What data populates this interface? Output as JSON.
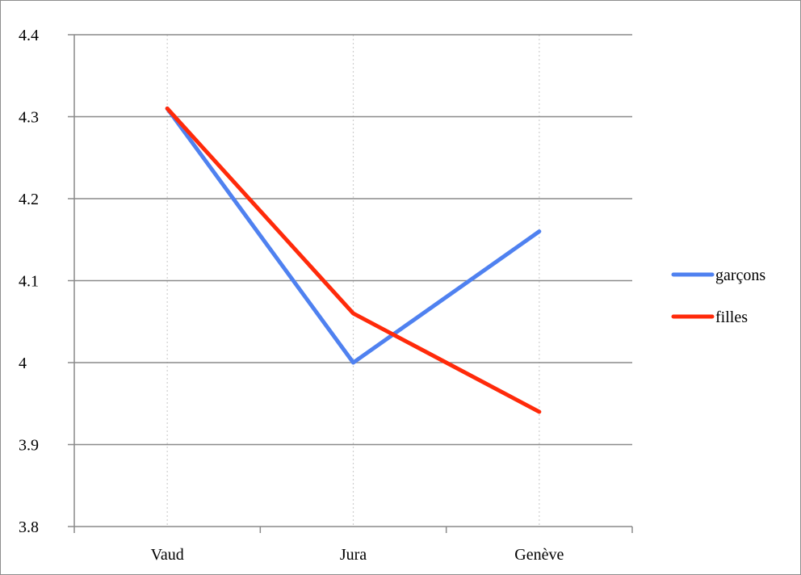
{
  "chart_data": {
    "type": "line",
    "categories": [
      "Vaud",
      "Jura",
      "Genève"
    ],
    "series": [
      {
        "name": "garçons",
        "values": [
          4.31,
          4.0,
          4.16
        ],
        "color": "#4F81F0"
      },
      {
        "name": "filles",
        "values": [
          4.31,
          4.06,
          3.94
        ],
        "color": "#FF2A0A"
      }
    ],
    "y_ticks": [
      "3.8",
      "3.9",
      "4",
      "4.1",
      "4.2",
      "4.3",
      "4.4"
    ],
    "ylim": [
      3.8,
      4.4
    ],
    "title": "",
    "xlabel": "",
    "ylabel": "",
    "grid": "horizontal major gridlines; dotted vertical lines at categories",
    "legend_position": "right"
  }
}
